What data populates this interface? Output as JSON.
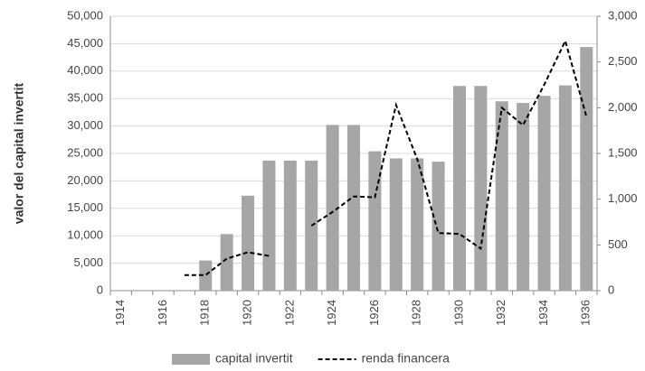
{
  "chart_data": {
    "type": "bar_line",
    "y_label": "valor del capital invertit",
    "categories": [
      "1914",
      null,
      "1916",
      null,
      "1918",
      null,
      "1920",
      null,
      "1922",
      null,
      "1924",
      null,
      "1926",
      null,
      "1928",
      null,
      "1930",
      null,
      "1932",
      null,
      "1934",
      null,
      "1936"
    ],
    "series": [
      {
        "name": "capital invertit",
        "type": "bar",
        "color": "#a6a6a6",
        "axis": "y",
        "values": [
          null,
          null,
          null,
          null,
          5500,
          10300,
          17300,
          23700,
          23700,
          23700,
          30200,
          30200,
          25400,
          24100,
          24100,
          23500,
          37300,
          37300,
          34500,
          34200,
          35500,
          37400,
          44400
        ]
      },
      {
        "name": "renda financera",
        "type": "line",
        "color": "#000000",
        "dashed": true,
        "axis": "y2",
        "values": [
          null,
          null,
          null,
          170,
          170,
          350,
          420,
          380,
          null,
          710,
          860,
          1030,
          1020,
          2030,
          1440,
          630,
          620,
          460,
          2000,
          1810,
          2250,
          2730,
          1900
        ]
      }
    ],
    "ylim": [
      0,
      50000
    ],
    "yticks": [
      0,
      {
        "value": 5000,
        "label": "5,000"
      },
      {
        "value": 10000,
        "label": "10,000"
      },
      {
        "value": 15000,
        "label": "15,000"
      },
      {
        "value": 20000,
        "label": "20,000"
      },
      {
        "value": 25000,
        "label": "25,000"
      },
      {
        "value": 30000,
        "label": "30,000"
      },
      {
        "value": 35000,
        "label": "35,000"
      },
      {
        "value": 40000,
        "label": "40,000"
      },
      {
        "value": 45000,
        "label": "45,000"
      },
      {
        "value": 50000,
        "label": "50,000"
      }
    ],
    "y2lim": [
      0,
      3000
    ],
    "y2ticks": [
      0,
      500,
      {
        "value": 1000,
        "label": "1,000"
      },
      {
        "value": 1500,
        "label": "1,500"
      },
      {
        "value": 2000,
        "label": "2,000"
      },
      {
        "value": 2500,
        "label": "2,500"
      },
      {
        "value": 3000,
        "label": "3,000"
      }
    ],
    "grid": true,
    "legend": "bottom"
  }
}
